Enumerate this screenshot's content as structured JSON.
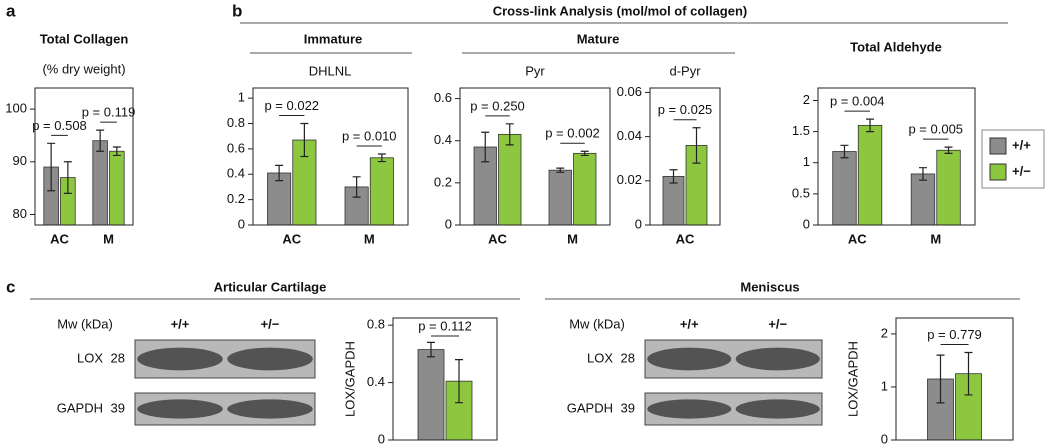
{
  "panel_labels": [
    "a",
    "b",
    "c"
  ],
  "headings": {
    "crosslink": "Cross-link Analysis (mol/mol of collagen)",
    "immature": "Immature",
    "mature": "Mature"
  },
  "chart_data": [
    {
      "type": "bar",
      "title": "Total Collagen",
      "subtitle": "(% dry weight)",
      "categories": [
        "AC",
        "M"
      ],
      "series": [
        {
          "color": "#8c8c8c",
          "values": [
            89,
            94
          ],
          "errors": [
            4.5,
            2
          ]
        },
        {
          "color": "#8dc63f",
          "values": [
            87,
            92
          ],
          "errors": [
            3,
            0.8
          ]
        }
      ],
      "annotations": [
        "p = 0.508",
        "p = 0.119"
      ],
      "ylim": [
        78,
        104
      ],
      "yticks": [
        80,
        90,
        100
      ]
    },
    {
      "type": "bar",
      "subtitle": "DHLNL",
      "categories": [
        "AC",
        "M"
      ],
      "series": [
        {
          "color": "#8c8c8c",
          "values": [
            0.41,
            0.3
          ],
          "errors": [
            0.06,
            0.08
          ]
        },
        {
          "color": "#8dc63f",
          "values": [
            0.67,
            0.53
          ],
          "errors": [
            0.13,
            0.03
          ]
        }
      ],
      "annotations": [
        "p = 0.022",
        "p = 0.010"
      ],
      "ylim": [
        0,
        1.08
      ],
      "yticks": [
        0,
        0.2,
        0.4,
        0.6,
        0.8,
        1
      ]
    },
    {
      "type": "bar",
      "subtitle": "Pyr",
      "categories": [
        "AC",
        "M"
      ],
      "series": [
        {
          "color": "#8c8c8c",
          "values": [
            0.37,
            0.26
          ],
          "errors": [
            0.07,
            0.01
          ]
        },
        {
          "color": "#8dc63f",
          "values": [
            0.43,
            0.34
          ],
          "errors": [
            0.05,
            0.01
          ]
        }
      ],
      "annotations": [
        "p = 0.250",
        "p = 0.002"
      ],
      "ylim": [
        0,
        0.65
      ],
      "yticks": [
        0,
        0.2,
        0.4,
        0.6
      ]
    },
    {
      "type": "bar",
      "subtitle": "d-Pyr",
      "categories": [
        "AC"
      ],
      "series": [
        {
          "color": "#8c8c8c",
          "values": [
            0.022
          ],
          "errors": [
            0.003
          ]
        },
        {
          "color": "#8dc63f",
          "values": [
            0.036
          ],
          "errors": [
            0.008
          ]
        }
      ],
      "annotations": [
        "p = 0.025"
      ],
      "ylim": [
        0,
        0.062
      ],
      "yticks": [
        0,
        0.02,
        0.04,
        0.06
      ]
    },
    {
      "type": "bar",
      "title": "Total Aldehyde",
      "categories": [
        "AC",
        "M"
      ],
      "legend": "right",
      "series": [
        {
          "name": "+/+",
          "color": "#8c8c8c",
          "values": [
            1.18,
            0.82
          ],
          "errors": [
            0.1,
            0.1
          ]
        },
        {
          "name": "+/−",
          "color": "#8dc63f",
          "values": [
            1.6,
            1.2
          ],
          "errors": [
            0.1,
            0.05
          ]
        }
      ],
      "annotations": [
        "p = 0.004",
        "p = 0.005"
      ],
      "ylim": [
        0,
        2.2
      ],
      "yticks": [
        0,
        0.5,
        1,
        1.5,
        2
      ]
    },
    {
      "type": "bar",
      "title": "Articular Cartilage",
      "ylabel": "LOX/GAPDH",
      "blot": {
        "mw_label": "Mw (kDa)",
        "lanes": [
          "+/+",
          "+/−"
        ],
        "rows": [
          {
            "protein": "LOX",
            "mw": 28
          },
          {
            "protein": "GAPDH",
            "mw": 39
          }
        ]
      },
      "series": [
        {
          "color": "#8c8c8c",
          "values": [
            0.63
          ],
          "errors": [
            0.05
          ]
        },
        {
          "color": "#8dc63f",
          "values": [
            0.41
          ],
          "errors": [
            0.15
          ]
        }
      ],
      "annotations": [
        "p = 0.112"
      ],
      "ylim": [
        0,
        0.85
      ],
      "yticks": [
        0,
        0.4,
        0.8
      ]
    },
    {
      "type": "bar",
      "title": "Meniscus",
      "ylabel": "LOX/GAPDH",
      "blot": {
        "mw_label": "Mw (kDa)",
        "lanes": [
          "+/+",
          "+/−"
        ],
        "rows": [
          {
            "protein": "LOX",
            "mw": 28
          },
          {
            "protein": "GAPDH",
            "mw": 39
          }
        ]
      },
      "series": [
        {
          "color": "#8c8c8c",
          "values": [
            1.15
          ],
          "errors": [
            0.45
          ]
        },
        {
          "color": "#8dc63f",
          "values": [
            1.25
          ],
          "errors": [
            0.4
          ]
        }
      ],
      "annotations": [
        "p = 0.779"
      ],
      "ylim": [
        0,
        2.3
      ],
      "yticks": [
        0,
        1,
        2
      ]
    }
  ]
}
